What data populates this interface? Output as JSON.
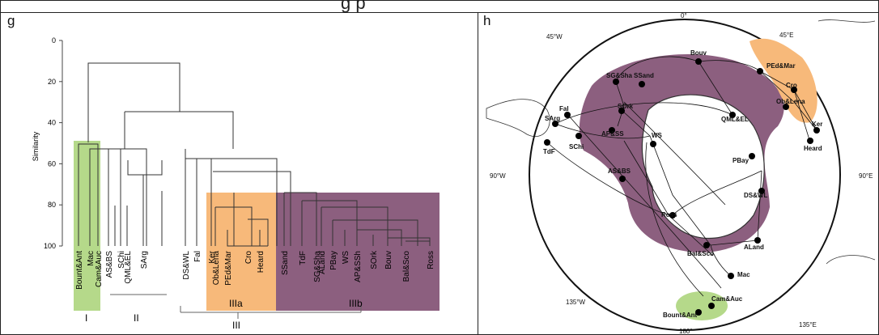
{
  "header": {
    "title_fragment": "g p"
  },
  "panels": {
    "left_label": "g",
    "right_label": "h"
  },
  "dendrogram": {
    "ylabel": "Similarity",
    "yticks": [
      "0",
      "20",
      "40",
      "60",
      "80",
      "100"
    ],
    "leaves": [
      "Bount&Ant",
      "Cam&Auc",
      "Mac",
      "AS&BS",
      "SChi",
      "QML&EL",
      "SArg",
      "DS&WL",
      "Fal",
      "Ker",
      "Ob&Lena",
      "PEd&Mar",
      "Cro",
      "Heard",
      "SSand",
      "TdF",
      "SG&Sha",
      "ALand",
      "PBay",
      "WS",
      "AP&SSh",
      "SOrk",
      "Bouv",
      "Bal&Sco",
      "Ross"
    ],
    "groups": [
      "I",
      "II",
      "IIIa",
      "IIIb",
      "III"
    ],
    "colors": {
      "green": "#b5d98a",
      "orange": "#f7b97a",
      "purple": "#8c5f7f"
    }
  },
  "map": {
    "lon_labels": [
      "0°",
      "45°E",
      "90°E",
      "135°E",
      "180°",
      "135°W",
      "90°W",
      "45°W"
    ],
    "sites": [
      "Bouv",
      "PEd&Mar",
      "SG&Sha",
      "SSand",
      "Cro",
      "Ob&Lena",
      "Ker",
      "Heard",
      "SArg",
      "Fal",
      "SOrk",
      "QML&EL",
      "AP&SS",
      "WS",
      "TdF",
      "SChi",
      "AS&BS",
      "PBay",
      "DS&WL",
      "Ross",
      "ALand",
      "Bal&Sco",
      "Mac",
      "Bount&Ant",
      "Cam&Auc"
    ]
  }
}
